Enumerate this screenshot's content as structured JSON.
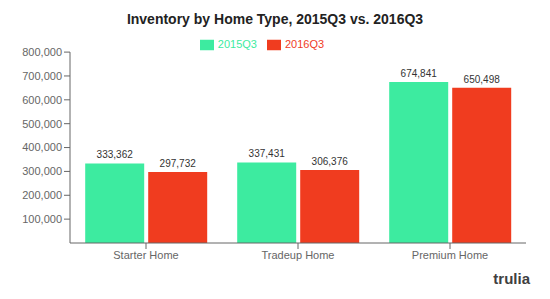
{
  "chart_data": {
    "type": "bar",
    "title": "Inventory by Home Type, 2015Q3 vs. 2016Q3",
    "categories": [
      "Starter Home",
      "Tradeup Home",
      "Premium Home"
    ],
    "series": [
      {
        "name": "2015Q3",
        "color": "#3DEBA0",
        "values": [
          333362,
          337431,
          674841
        ],
        "value_labels": [
          "333,362",
          "337,431",
          "674,841"
        ]
      },
      {
        "name": "2016Q3",
        "color": "#F03C1F",
        "values": [
          297732,
          306376,
          650498
        ],
        "value_labels": [
          "297,732",
          "306,376",
          "650,498"
        ]
      }
    ],
    "ylim": [
      0,
      800000
    ],
    "yticks": [
      {
        "value": 100000,
        "label": "100,000"
      },
      {
        "value": 200000,
        "label": "200,000"
      },
      {
        "value": 300000,
        "label": "300,000"
      },
      {
        "value": 400000,
        "label": "400,000"
      },
      {
        "value": 500000,
        "label": "500,000"
      },
      {
        "value": 600000,
        "label": "600,000"
      },
      {
        "value": 700000,
        "label": "700,000"
      },
      {
        "value": 800000,
        "label": "800,000"
      }
    ],
    "grid": false,
    "legend": "upper center",
    "data_labels": true,
    "annotations": [
      {
        "text": "trulia",
        "color": "#404040"
      }
    ]
  }
}
